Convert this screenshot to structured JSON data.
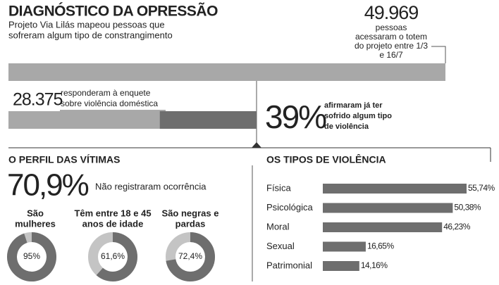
{
  "header": {
    "title": "DIAGNÓSTICO DA OPRESSÃO",
    "subtitle": [
      "Projeto Via Lilás mapeou pessoas que",
      "sofreram algum tipo de constrangimento"
    ]
  },
  "chart_data": [
    {
      "type": "proportion",
      "total": 49969,
      "total_label": "49.969",
      "total_text": [
        "pessoas",
        "acessaram o totem",
        "do projeto entre 1/3",
        "e 16/7"
      ],
      "respondents": 28375,
      "respondents_label": "28.375",
      "respondents_text": [
        "responderam à enquete",
        "sobre violência doméstica"
      ],
      "share": 39,
      "share_label": "39%",
      "share_text": [
        "afirmaram já ter",
        "sofrido algum tipo",
        "de violência"
      ],
      "colors": [
        "#a8a8a8",
        "#6e6e6e"
      ]
    },
    {
      "type": "donut",
      "title": "O PERFIL DAS VÍTIMAS",
      "highlight": "70,9%",
      "highlight_text": "Não registraram ocorrência",
      "categories": [
        [
          "São",
          "mulheres"
        ],
        [
          "Têm entre 18 e 45",
          "anos de idade"
        ],
        [
          "São negras e",
          "pardas"
        ]
      ],
      "values": [
        95,
        61.6,
        72.4
      ],
      "value_labels": [
        "95%",
        "61,6%",
        "72,4%"
      ],
      "colors": [
        "#6e6e6e",
        "#c4c4c4"
      ]
    },
    {
      "type": "hbar",
      "title": "OS TIPOS DE VIOLÊNCIA",
      "categories": [
        "Física",
        "Psicológica",
        "Moral",
        "Sexual",
        "Patrimonial"
      ],
      "values": [
        55.74,
        50.38,
        46.23,
        16.65,
        14.16
      ],
      "value_labels": [
        "55,74%",
        "50,38%",
        "46,23%",
        "16,65%",
        "14,16%"
      ],
      "color": "#6e6e6e"
    }
  ]
}
